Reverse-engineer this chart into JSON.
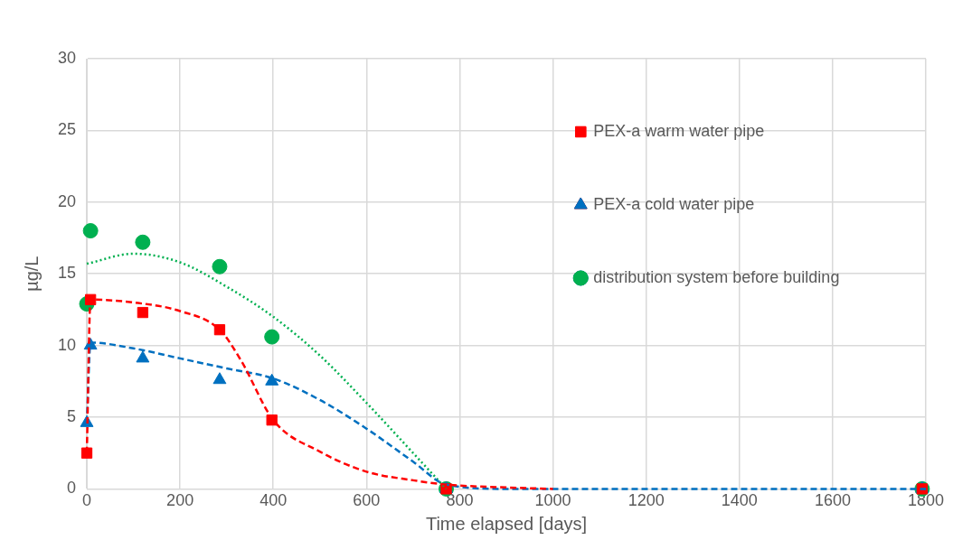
{
  "chart_data": {
    "type": "scatter",
    "xlabel": "Time elapsed [days]",
    "ylabel": "µg/L",
    "xlim": [
      0,
      1800
    ],
    "xticks": [
      0,
      200,
      400,
      600,
      800,
      1000,
      1200,
      1400,
      1600,
      1800
    ],
    "ylim": [
      0,
      30
    ],
    "yticks": [
      0,
      5,
      10,
      15,
      20,
      25,
      30
    ],
    "grid": true,
    "legend": "top right",
    "series": [
      {
        "name": "PEX-a warm water pipe",
        "color": "#ff0000",
        "marker": "square",
        "x": [
          0,
          8,
          120,
          285,
          397,
          771,
          1792
        ],
        "values": [
          2.5,
          13.2,
          12.3,
          11.1,
          4.8,
          0,
          0
        ]
      },
      {
        "name": "PEX-a cold water pipe",
        "color": "#0070c0",
        "marker": "triangle",
        "x": [
          0,
          8,
          120,
          285,
          397,
          771,
          1792
        ],
        "values": [
          4.6,
          10,
          9.1,
          7.6,
          7.5,
          0,
          0
        ]
      },
      {
        "name": "distribution system before building",
        "color": "#00b050",
        "marker": "circle",
        "x": [
          0,
          8,
          120,
          285,
          397,
          771,
          1792
        ],
        "values": [
          12.9,
          18,
          17.2,
          15.5,
          10.6,
          0,
          0
        ]
      },
      {
        "type": "line",
        "color": "#ff0000",
        "marker": "none",
        "line_style": "dashed",
        "x": [
          0,
          8,
          100,
          200,
          285,
          330,
          400,
          500,
          600,
          700,
          771,
          900,
          1000
        ],
        "values": [
          2.5,
          13.2,
          13,
          12.4,
          11.1,
          9,
          4.8,
          2.6,
          1.2,
          0.6,
          0.3,
          0.1,
          0
        ]
      },
      {
        "type": "line",
        "color": "#0070c0",
        "marker": "none",
        "line_style": "dashed",
        "x": [
          0,
          8,
          100,
          200,
          300,
          400,
          500,
          600,
          700,
          771,
          900,
          1800
        ],
        "values": [
          4.6,
          10.2,
          9.8,
          9.1,
          8.4,
          7.7,
          6.2,
          4.2,
          1.9,
          0.3,
          0,
          0
        ]
      },
      {
        "type": "line",
        "color": "#00b050",
        "marker": "none",
        "line_style": "dotted",
        "x": [
          0,
          100,
          200,
          300,
          400,
          500,
          600,
          700,
          771
        ],
        "values": [
          15.7,
          16.4,
          15.8,
          14.1,
          12,
          9.3,
          6,
          2.5,
          0
        ]
      }
    ]
  }
}
